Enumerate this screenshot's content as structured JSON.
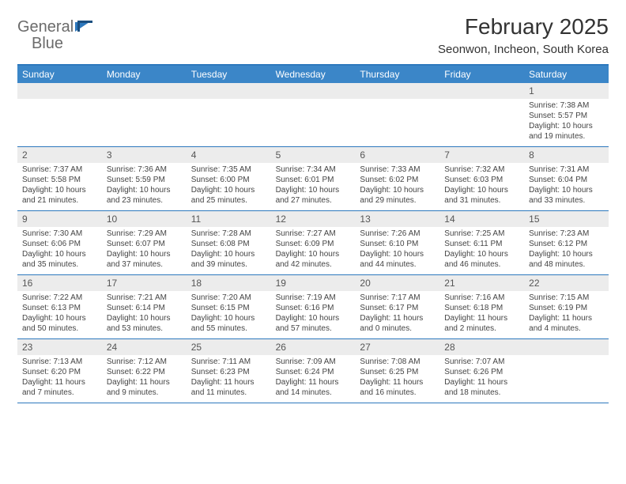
{
  "brand": {
    "name_part1": "General",
    "name_part2": "Blue"
  },
  "colors": {
    "header_bar": "#3b86c8",
    "header_border": "#2d78bd",
    "daynum_bg": "#ececec",
    "text": "#333333",
    "logo_gray": "#6b6b6b",
    "logo_blue": "#2d78bd",
    "white": "#ffffff"
  },
  "typography": {
    "base_font": "Arial",
    "title_size_pt": 28,
    "location_size_pt": 15,
    "weekday_size_pt": 12,
    "cell_size_pt": 10
  },
  "title": "February 2025",
  "location": "Seonwon, Incheon, South Korea",
  "weekdays": [
    "Sunday",
    "Monday",
    "Tuesday",
    "Wednesday",
    "Thursday",
    "Friday",
    "Saturday"
  ],
  "weeks": [
    [
      {
        "n": "",
        "lines": []
      },
      {
        "n": "",
        "lines": []
      },
      {
        "n": "",
        "lines": []
      },
      {
        "n": "",
        "lines": []
      },
      {
        "n": "",
        "lines": []
      },
      {
        "n": "",
        "lines": []
      },
      {
        "n": "1",
        "lines": [
          "Sunrise: 7:38 AM",
          "Sunset: 5:57 PM",
          "Daylight: 10 hours",
          "and 19 minutes."
        ]
      }
    ],
    [
      {
        "n": "2",
        "lines": [
          "Sunrise: 7:37 AM",
          "Sunset: 5:58 PM",
          "Daylight: 10 hours",
          "and 21 minutes."
        ]
      },
      {
        "n": "3",
        "lines": [
          "Sunrise: 7:36 AM",
          "Sunset: 5:59 PM",
          "Daylight: 10 hours",
          "and 23 minutes."
        ]
      },
      {
        "n": "4",
        "lines": [
          "Sunrise: 7:35 AM",
          "Sunset: 6:00 PM",
          "Daylight: 10 hours",
          "and 25 minutes."
        ]
      },
      {
        "n": "5",
        "lines": [
          "Sunrise: 7:34 AM",
          "Sunset: 6:01 PM",
          "Daylight: 10 hours",
          "and 27 minutes."
        ]
      },
      {
        "n": "6",
        "lines": [
          "Sunrise: 7:33 AM",
          "Sunset: 6:02 PM",
          "Daylight: 10 hours",
          "and 29 minutes."
        ]
      },
      {
        "n": "7",
        "lines": [
          "Sunrise: 7:32 AM",
          "Sunset: 6:03 PM",
          "Daylight: 10 hours",
          "and 31 minutes."
        ]
      },
      {
        "n": "8",
        "lines": [
          "Sunrise: 7:31 AM",
          "Sunset: 6:04 PM",
          "Daylight: 10 hours",
          "and 33 minutes."
        ]
      }
    ],
    [
      {
        "n": "9",
        "lines": [
          "Sunrise: 7:30 AM",
          "Sunset: 6:06 PM",
          "Daylight: 10 hours",
          "and 35 minutes."
        ]
      },
      {
        "n": "10",
        "lines": [
          "Sunrise: 7:29 AM",
          "Sunset: 6:07 PM",
          "Daylight: 10 hours",
          "and 37 minutes."
        ]
      },
      {
        "n": "11",
        "lines": [
          "Sunrise: 7:28 AM",
          "Sunset: 6:08 PM",
          "Daylight: 10 hours",
          "and 39 minutes."
        ]
      },
      {
        "n": "12",
        "lines": [
          "Sunrise: 7:27 AM",
          "Sunset: 6:09 PM",
          "Daylight: 10 hours",
          "and 42 minutes."
        ]
      },
      {
        "n": "13",
        "lines": [
          "Sunrise: 7:26 AM",
          "Sunset: 6:10 PM",
          "Daylight: 10 hours",
          "and 44 minutes."
        ]
      },
      {
        "n": "14",
        "lines": [
          "Sunrise: 7:25 AM",
          "Sunset: 6:11 PM",
          "Daylight: 10 hours",
          "and 46 minutes."
        ]
      },
      {
        "n": "15",
        "lines": [
          "Sunrise: 7:23 AM",
          "Sunset: 6:12 PM",
          "Daylight: 10 hours",
          "and 48 minutes."
        ]
      }
    ],
    [
      {
        "n": "16",
        "lines": [
          "Sunrise: 7:22 AM",
          "Sunset: 6:13 PM",
          "Daylight: 10 hours",
          "and 50 minutes."
        ]
      },
      {
        "n": "17",
        "lines": [
          "Sunrise: 7:21 AM",
          "Sunset: 6:14 PM",
          "Daylight: 10 hours",
          "and 53 minutes."
        ]
      },
      {
        "n": "18",
        "lines": [
          "Sunrise: 7:20 AM",
          "Sunset: 6:15 PM",
          "Daylight: 10 hours",
          "and 55 minutes."
        ]
      },
      {
        "n": "19",
        "lines": [
          "Sunrise: 7:19 AM",
          "Sunset: 6:16 PM",
          "Daylight: 10 hours",
          "and 57 minutes."
        ]
      },
      {
        "n": "20",
        "lines": [
          "Sunrise: 7:17 AM",
          "Sunset: 6:17 PM",
          "Daylight: 11 hours",
          "and 0 minutes."
        ]
      },
      {
        "n": "21",
        "lines": [
          "Sunrise: 7:16 AM",
          "Sunset: 6:18 PM",
          "Daylight: 11 hours",
          "and 2 minutes."
        ]
      },
      {
        "n": "22",
        "lines": [
          "Sunrise: 7:15 AM",
          "Sunset: 6:19 PM",
          "Daylight: 11 hours",
          "and 4 minutes."
        ]
      }
    ],
    [
      {
        "n": "23",
        "lines": [
          "Sunrise: 7:13 AM",
          "Sunset: 6:20 PM",
          "Daylight: 11 hours",
          "and 7 minutes."
        ]
      },
      {
        "n": "24",
        "lines": [
          "Sunrise: 7:12 AM",
          "Sunset: 6:22 PM",
          "Daylight: 11 hours",
          "and 9 minutes."
        ]
      },
      {
        "n": "25",
        "lines": [
          "Sunrise: 7:11 AM",
          "Sunset: 6:23 PM",
          "Daylight: 11 hours",
          "and 11 minutes."
        ]
      },
      {
        "n": "26",
        "lines": [
          "Sunrise: 7:09 AM",
          "Sunset: 6:24 PM",
          "Daylight: 11 hours",
          "and 14 minutes."
        ]
      },
      {
        "n": "27",
        "lines": [
          "Sunrise: 7:08 AM",
          "Sunset: 6:25 PM",
          "Daylight: 11 hours",
          "and 16 minutes."
        ]
      },
      {
        "n": "28",
        "lines": [
          "Sunrise: 7:07 AM",
          "Sunset: 6:26 PM",
          "Daylight: 11 hours",
          "and 18 minutes."
        ]
      },
      {
        "n": "",
        "lines": []
      }
    ]
  ]
}
